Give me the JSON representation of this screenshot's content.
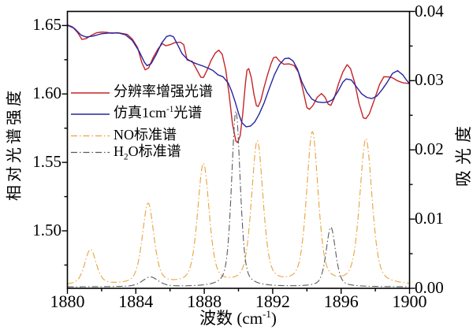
{
  "figure": {
    "background": "#ffffff",
    "x_axis": {
      "title_plain": "波数 (cm⁻¹)",
      "title_parts": [
        {
          "t": "波数 (cm"
        },
        {
          "t": "-1",
          "sup": true
        },
        {
          "t": ")"
        }
      ],
      "min": 1880,
      "max": 1900,
      "major_ticks": [
        1880,
        1884,
        1888,
        1892,
        1896,
        1900
      ],
      "tick_labels": [
        "1880",
        "1884",
        "1888",
        "1892",
        "1896",
        "1900"
      ],
      "minor_ticks": [
        1882,
        1886,
        1890,
        1894,
        1898
      ]
    },
    "y_left": {
      "title": "相对光谱强度",
      "min": 1.458,
      "max": 1.6603,
      "major_ticks": [
        1.65,
        1.6,
        1.55,
        1.5
      ],
      "tick_labels": [
        "1.65",
        "1.60",
        "1.55",
        "1.50"
      ],
      "minor_ticks": [
        1.625,
        1.575,
        1.525,
        1.475
      ]
    },
    "y_right": {
      "title": "吸光度",
      "min": 0,
      "max": 0.04,
      "major_ticks": [
        0.0,
        0.01,
        0.02,
        0.03,
        0.04
      ],
      "tick_labels": [
        "0.00",
        "0.01",
        "0.02",
        "0.03",
        "0.04"
      ],
      "minor_ticks": [
        0.005,
        0.015,
        0.025,
        0.035
      ]
    }
  },
  "chart_data": {
    "type": "line",
    "x_range": [
      1880,
      1900
    ],
    "grid": false,
    "legend": {
      "position": "inside-upper-left",
      "entries": [
        {
          "key": "enhanced-spectrum",
          "color": "#c42428",
          "dash": "solid",
          "label_plain": "分辨率增强光谱",
          "label_parts": [
            {
              "t": "分辨率增强光谱"
            }
          ]
        },
        {
          "key": "simulated-1cm-spectrum",
          "color": "#2525a2",
          "dash": "solid",
          "label_plain": "仿真1cm⁻¹光谱",
          "label_parts": [
            {
              "t": "仿真1cm"
            },
            {
              "t": "-1",
              "sup": true
            },
            {
              "t": "光谱"
            }
          ]
        },
        {
          "key": "no-standard",
          "color": "#e8a33c",
          "dash": "dashdot",
          "label_plain": "NO标准谱",
          "label_parts": [
            {
              "t": "NO标准谱"
            }
          ]
        },
        {
          "key": "h2o-standard",
          "color": "#5a5a5a",
          "dash": "dashdot",
          "label_plain": "H₂O标准谱",
          "label_parts": [
            {
              "t": "H"
            },
            {
              "t": "2",
              "sub": true
            },
            {
              "t": "O标准谱"
            }
          ]
        }
      ]
    },
    "series": [
      {
        "key": "enhanced-spectrum",
        "name": "分辨率增强光谱",
        "axis": "left",
        "color": "#c42428",
        "style": "solid",
        "width": 1.4,
        "points": [
          [
            1880.0,
            1.6505
          ],
          [
            1880.3,
            1.649
          ],
          [
            1880.6,
            1.6448
          ],
          [
            1880.85,
            1.6398
          ],
          [
            1881.1,
            1.6405
          ],
          [
            1881.4,
            1.6428
          ],
          [
            1881.7,
            1.6447
          ],
          [
            1882.0,
            1.6452
          ],
          [
            1882.3,
            1.645
          ],
          [
            1882.6,
            1.6443
          ],
          [
            1882.9,
            1.6448
          ],
          [
            1883.2,
            1.6442
          ],
          [
            1883.5,
            1.6435
          ],
          [
            1883.8,
            1.64
          ],
          [
            1884.1,
            1.634
          ],
          [
            1884.35,
            1.623
          ],
          [
            1884.55,
            1.6176
          ],
          [
            1884.75,
            1.619
          ],
          [
            1885.0,
            1.6263
          ],
          [
            1885.3,
            1.633
          ],
          [
            1885.55,
            1.6368
          ],
          [
            1885.75,
            1.6352
          ],
          [
            1886.0,
            1.636
          ],
          [
            1886.3,
            1.6376
          ],
          [
            1886.6,
            1.6378
          ],
          [
            1886.8,
            1.636
          ],
          [
            1887.0,
            1.6248
          ],
          [
            1887.3,
            1.6238
          ],
          [
            1887.55,
            1.618
          ],
          [
            1887.8,
            1.6122
          ],
          [
            1887.95,
            1.612
          ],
          [
            1888.15,
            1.617
          ],
          [
            1888.4,
            1.6245
          ],
          [
            1888.65,
            1.63
          ],
          [
            1888.85,
            1.632
          ],
          [
            1889.05,
            1.629
          ],
          [
            1889.25,
            1.618
          ],
          [
            1889.45,
            1.6
          ],
          [
            1889.65,
            1.578
          ],
          [
            1889.85,
            1.5655
          ],
          [
            1889.95,
            1.5645
          ],
          [
            1890.1,
            1.5695
          ],
          [
            1890.25,
            1.5855
          ],
          [
            1890.4,
            1.607
          ],
          [
            1890.5,
            1.6175
          ],
          [
            1890.6,
            1.6185
          ],
          [
            1890.75,
            1.612
          ],
          [
            1890.9,
            1.6
          ],
          [
            1891.05,
            1.5915
          ],
          [
            1891.15,
            1.5908
          ],
          [
            1891.3,
            1.595
          ],
          [
            1891.5,
            1.605
          ],
          [
            1891.7,
            1.614
          ],
          [
            1891.9,
            1.622
          ],
          [
            1892.05,
            1.6265
          ],
          [
            1892.2,
            1.627
          ],
          [
            1892.4,
            1.624
          ],
          [
            1892.65,
            1.6217
          ],
          [
            1892.95,
            1.622
          ],
          [
            1893.25,
            1.6208
          ],
          [
            1893.5,
            1.616
          ],
          [
            1893.75,
            1.604
          ],
          [
            1894.0,
            1.59
          ],
          [
            1894.15,
            1.5888
          ],
          [
            1894.35,
            1.5915
          ],
          [
            1894.6,
            1.5975
          ],
          [
            1894.85,
            1.6003
          ],
          [
            1895.05,
            1.5978
          ],
          [
            1895.25,
            1.5925
          ],
          [
            1895.4,
            1.5917
          ],
          [
            1895.6,
            1.597
          ],
          [
            1895.85,
            1.6075
          ],
          [
            1896.1,
            1.616
          ],
          [
            1896.35,
            1.6214
          ],
          [
            1896.55,
            1.6185
          ],
          [
            1896.8,
            1.608
          ],
          [
            1897.05,
            1.593
          ],
          [
            1897.3,
            1.5825
          ],
          [
            1897.45,
            1.582
          ],
          [
            1897.65,
            1.5855
          ],
          [
            1897.95,
            1.596
          ],
          [
            1898.25,
            1.607
          ],
          [
            1898.5,
            1.6126
          ],
          [
            1898.8,
            1.6124
          ],
          [
            1899.0,
            1.6118
          ],
          [
            1899.3,
            1.6096
          ],
          [
            1899.6,
            1.6082
          ],
          [
            1900.0,
            1.6075
          ]
        ]
      },
      {
        "key": "simulated-1cm-spectrum",
        "name": "仿真1cm⁻¹光谱",
        "axis": "left",
        "color": "#2525a2",
        "style": "solid",
        "width": 1.4,
        "points": [
          [
            1880.0,
            1.6502
          ],
          [
            1880.4,
            1.648
          ],
          [
            1880.8,
            1.643
          ],
          [
            1881.1,
            1.6416
          ],
          [
            1881.5,
            1.6423
          ],
          [
            1882.0,
            1.644
          ],
          [
            1882.5,
            1.6446
          ],
          [
            1883.0,
            1.6445
          ],
          [
            1883.4,
            1.6432
          ],
          [
            1883.8,
            1.639
          ],
          [
            1884.2,
            1.631
          ],
          [
            1884.5,
            1.6232
          ],
          [
            1884.65,
            1.6207
          ],
          [
            1884.9,
            1.6222
          ],
          [
            1885.2,
            1.629
          ],
          [
            1885.5,
            1.637
          ],
          [
            1885.8,
            1.642
          ],
          [
            1886.0,
            1.6427
          ],
          [
            1886.2,
            1.6418
          ],
          [
            1886.4,
            1.637
          ],
          [
            1886.7,
            1.6295
          ],
          [
            1887.0,
            1.6255
          ],
          [
            1887.3,
            1.6232
          ],
          [
            1887.6,
            1.6218
          ],
          [
            1887.9,
            1.6205
          ],
          [
            1888.2,
            1.619
          ],
          [
            1888.5,
            1.6172
          ],
          [
            1888.8,
            1.614
          ],
          [
            1889.1,
            1.6125
          ],
          [
            1889.4,
            1.608
          ],
          [
            1889.6,
            1.602
          ],
          [
            1889.8,
            1.5945
          ],
          [
            1890.0,
            1.586
          ],
          [
            1890.2,
            1.579
          ],
          [
            1890.45,
            1.576
          ],
          [
            1890.7,
            1.5765
          ],
          [
            1890.95,
            1.5795
          ],
          [
            1891.2,
            1.585
          ],
          [
            1891.5,
            1.5935
          ],
          [
            1891.8,
            1.604
          ],
          [
            1892.1,
            1.614
          ],
          [
            1892.4,
            1.6215
          ],
          [
            1892.7,
            1.6258
          ],
          [
            1892.95,
            1.6262
          ],
          [
            1893.2,
            1.624
          ],
          [
            1893.45,
            1.618
          ],
          [
            1893.7,
            1.609
          ],
          [
            1894.0,
            1.6012
          ],
          [
            1894.3,
            1.5962
          ],
          [
            1894.6,
            1.5942
          ],
          [
            1894.9,
            1.5937
          ],
          [
            1895.2,
            1.594
          ],
          [
            1895.5,
            1.5958
          ],
          [
            1895.8,
            1.6015
          ],
          [
            1896.1,
            1.6086
          ],
          [
            1896.3,
            1.611
          ],
          [
            1896.6,
            1.6102
          ],
          [
            1896.9,
            1.6052
          ],
          [
            1897.2,
            1.6001
          ],
          [
            1897.5,
            1.5975
          ],
          [
            1897.8,
            1.5966
          ],
          [
            1898.1,
            1.5986
          ],
          [
            1898.4,
            1.6032
          ],
          [
            1898.7,
            1.6086
          ],
          [
            1899.0,
            1.615
          ],
          [
            1899.3,
            1.617
          ],
          [
            1899.6,
            1.614
          ],
          [
            1899.8,
            1.6105
          ],
          [
            1900.0,
            1.6075
          ]
        ]
      },
      {
        "key": "no-standard",
        "name": "NO标准谱",
        "axis": "right",
        "color": "#e8a33c",
        "style": "dashdot",
        "width": 1.1,
        "baseline": 0.0004,
        "peaks": [
          {
            "center": 1881.35,
            "height": 0.0051,
            "fwhm": 0.8
          },
          {
            "center": 1884.72,
            "height": 0.0117,
            "fwhm": 0.8
          },
          {
            "center": 1887.95,
            "height": 0.0174,
            "fwhm": 0.8
          },
          {
            "center": 1891.1,
            "height": 0.0206,
            "fwhm": 0.8
          },
          {
            "center": 1894.32,
            "height": 0.0219,
            "fwhm": 0.8
          },
          {
            "center": 1897.45,
            "height": 0.021,
            "fwhm": 0.85
          }
        ]
      },
      {
        "key": "h2o-standard",
        "name": "H₂O标准谱",
        "axis": "right",
        "color": "#5a5a5a",
        "style": "dashdot",
        "width": 1.1,
        "baseline": 0.0002,
        "peaks": [
          {
            "center": 1884.85,
            "height": 0.0014,
            "fwhm": 1.1
          },
          {
            "center": 1889.85,
            "height": 0.0254,
            "fwhm": 0.6
          },
          {
            "center": 1895.4,
            "height": 0.0086,
            "fwhm": 0.65
          }
        ]
      }
    ]
  }
}
